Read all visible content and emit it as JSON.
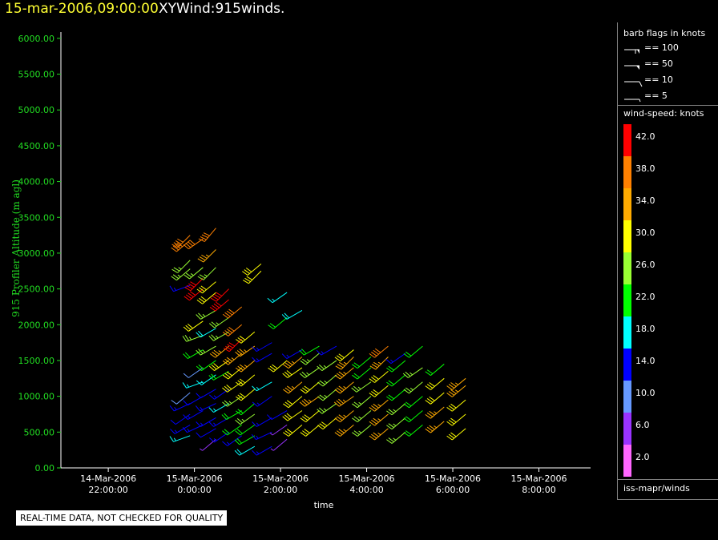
{
  "header": {
    "date_time": "15-mar-2006,09:00:00",
    "product": "XYWind:915winds."
  },
  "chart_data": {
    "type": "scatter",
    "marker": "wind-barb",
    "ylabel": "915 Profiler Altitude (m agl)",
    "xlabel": "time",
    "y_ticks": [
      "0.00",
      "500.00",
      "1000.00",
      "1500.00",
      "2000.00",
      "2500.00",
      "3000.00",
      "3500.00",
      "4000.00",
      "4500.00",
      "5000.00",
      "5500.00",
      "6000.00"
    ],
    "ylim": [
      0,
      6200
    ],
    "x_ticks": [
      {
        "hours": -2,
        "line1": "14-Mar-2006",
        "line2": "22:00:00"
      },
      {
        "hours": 0,
        "line1": "15-Mar-2006",
        "line2": "0:00:00"
      },
      {
        "hours": 2,
        "line1": "15-Mar-2006",
        "line2": "2:00:00"
      },
      {
        "hours": 4,
        "line1": "15-Mar-2006",
        "line2": "4:00:00"
      },
      {
        "hours": 6,
        "line1": "15-Mar-2006",
        "line2": "6:00:00"
      },
      {
        "hours": 8,
        "line1": "15-Mar-2006",
        "line2": "8:00:00"
      }
    ],
    "xlim_hours": [
      -3.1,
      9.2
    ],
    "colors": {
      "axis": "#22dd22",
      "tick_label": "#22dd22"
    },
    "profiles": [
      {
        "t": -0.1,
        "obs": [
          [
            450,
            16,
            250
          ],
          [
            600,
            14,
            240
          ],
          [
            750,
            12,
            235
          ],
          [
            900,
            14,
            245
          ],
          [
            1050,
            10,
            230
          ],
          [
            2550,
            14,
            250
          ],
          [
            2780,
            26,
            230
          ],
          [
            2900,
            26,
            225
          ],
          [
            3180,
            38,
            230
          ],
          [
            3250,
            38,
            225
          ]
        ]
      },
      {
        "t": 0.2,
        "obs": [
          [
            600,
            14,
            245
          ],
          [
            800,
            14,
            240
          ],
          [
            1000,
            12,
            240
          ],
          [
            1200,
            16,
            250
          ],
          [
            1400,
            10,
            235
          ],
          [
            1650,
            20,
            240
          ],
          [
            1850,
            26,
            250
          ],
          [
            2050,
            30,
            235
          ],
          [
            2500,
            42,
            230
          ],
          [
            2650,
            42,
            225
          ],
          [
            2800,
            26,
            230
          ],
          [
            3200,
            38,
            235
          ]
        ]
      },
      {
        "t": 0.5,
        "obs": [
          [
            400,
            6,
            230
          ],
          [
            550,
            12,
            240
          ],
          [
            700,
            14,
            240
          ],
          [
            900,
            14,
            245
          ],
          [
            1100,
            12,
            240
          ],
          [
            1300,
            16,
            235
          ],
          [
            1500,
            22,
            235
          ],
          [
            1700,
            26,
            240
          ],
          [
            1950,
            18,
            240
          ],
          [
            2200,
            26,
            240
          ],
          [
            2450,
            30,
            230
          ],
          [
            2600,
            30,
            230
          ],
          [
            2800,
            26,
            225
          ],
          [
            3050,
            34,
            225
          ],
          [
            3350,
            38,
            220
          ]
        ]
      },
      {
        "t": 0.8,
        "obs": [
          [
            500,
            14,
            235
          ],
          [
            700,
            14,
            240
          ],
          [
            900,
            16,
            240
          ],
          [
            1100,
            14,
            235
          ],
          [
            1350,
            22,
            240
          ],
          [
            1500,
            30,
            235
          ],
          [
            1700,
            34,
            230
          ],
          [
            1900,
            26,
            240
          ],
          [
            2100,
            26,
            235
          ],
          [
            2350,
            42,
            230
          ],
          [
            2500,
            42,
            225
          ]
        ]
      },
      {
        "t": 1.1,
        "obs": [
          [
            450,
            14,
            235
          ],
          [
            600,
            22,
            235
          ],
          [
            800,
            22,
            240
          ],
          [
            1000,
            26,
            235
          ],
          [
            1200,
            30,
            235
          ],
          [
            1400,
            30,
            230
          ],
          [
            1600,
            34,
            230
          ],
          [
            1800,
            42,
            225
          ],
          [
            2000,
            38,
            230
          ],
          [
            2250,
            38,
            230
          ]
        ]
      },
      {
        "t": 1.4,
        "obs": [
          [
            300,
            18,
            240
          ],
          [
            450,
            22,
            240
          ],
          [
            600,
            22,
            235
          ],
          [
            750,
            26,
            235
          ],
          [
            900,
            22,
            230
          ],
          [
            1100,
            30,
            230
          ],
          [
            1300,
            30,
            230
          ],
          [
            1500,
            34,
            230
          ],
          [
            1700,
            34,
            235
          ],
          [
            1900,
            30,
            230
          ]
        ]
      },
      {
        "t": 1.55,
        "obs": [
          [
            2750,
            30,
            225
          ],
          [
            2850,
            30,
            230
          ]
        ]
      },
      {
        "t": 1.8,
        "obs": [
          [
            300,
            14,
            240
          ],
          [
            500,
            14,
            245
          ],
          [
            700,
            14,
            240
          ],
          [
            1000,
            14,
            235
          ],
          [
            1200,
            16,
            240
          ],
          [
            1600,
            14,
            240
          ],
          [
            1750,
            14,
            240
          ]
        ]
      },
      {
        "t": 2.15,
        "obs": [
          [
            400,
            6,
            230
          ],
          [
            600,
            6,
            235
          ],
          [
            800,
            12,
            240
          ],
          [
            1500,
            30,
            230
          ],
          [
            2100,
            22,
            230
          ],
          [
            2450,
            16,
            235
          ]
        ]
      },
      {
        "t": 2.5,
        "obs": [
          [
            600,
            30,
            230
          ],
          [
            800,
            30,
            235
          ],
          [
            1000,
            30,
            230
          ],
          [
            1200,
            34,
            230
          ],
          [
            1400,
            30,
            235
          ],
          [
            1550,
            34,
            230
          ],
          [
            1650,
            14,
            240
          ],
          [
            2200,
            18,
            240
          ]
        ]
      },
      {
        "t": 2.9,
        "obs": [
          [
            600,
            30,
            230
          ],
          [
            800,
            30,
            230
          ],
          [
            1000,
            34,
            235
          ],
          [
            1200,
            30,
            230
          ],
          [
            1400,
            26,
            235
          ],
          [
            1600,
            26,
            230
          ],
          [
            1700,
            22,
            240
          ]
        ]
      },
      {
        "t": 3.3,
        "obs": [
          [
            700,
            30,
            230
          ],
          [
            900,
            26,
            235
          ],
          [
            1100,
            26,
            230
          ],
          [
            1300,
            26,
            230
          ],
          [
            1500,
            26,
            235
          ],
          [
            1700,
            14,
            240
          ]
        ]
      },
      {
        "t": 3.7,
        "obs": [
          [
            600,
            34,
            230
          ],
          [
            800,
            34,
            230
          ],
          [
            1000,
            34,
            235
          ],
          [
            1200,
            34,
            230
          ],
          [
            1400,
            34,
            230
          ],
          [
            1550,
            34,
            225
          ],
          [
            1650,
            30,
            230
          ]
        ]
      },
      {
        "t": 4.1,
        "obs": [
          [
            600,
            26,
            230
          ],
          [
            800,
            26,
            230
          ],
          [
            1000,
            26,
            230
          ],
          [
            1200,
            26,
            235
          ],
          [
            1400,
            22,
            230
          ],
          [
            1550,
            22,
            230
          ]
        ]
      },
      {
        "t": 4.5,
        "obs": [
          [
            550,
            34,
            230
          ],
          [
            750,
            34,
            230
          ],
          [
            950,
            34,
            230
          ],
          [
            1150,
            30,
            230
          ],
          [
            1350,
            30,
            230
          ],
          [
            1550,
            34,
            225
          ],
          [
            1700,
            38,
            230
          ]
        ]
      },
      {
        "t": 4.9,
        "obs": [
          [
            500,
            26,
            230
          ],
          [
            700,
            26,
            230
          ],
          [
            900,
            26,
            230
          ],
          [
            1100,
            22,
            230
          ],
          [
            1300,
            22,
            230
          ],
          [
            1500,
            22,
            230
          ],
          [
            1600,
            14,
            235
          ]
        ]
      },
      {
        "t": 5.3,
        "obs": [
          [
            600,
            22,
            230
          ],
          [
            800,
            22,
            230
          ],
          [
            1000,
            22,
            230
          ],
          [
            1200,
            26,
            230
          ],
          [
            1400,
            26,
            235
          ],
          [
            1700,
            22,
            230
          ]
        ]
      },
      {
        "t": 5.8,
        "obs": [
          [
            650,
            34,
            230
          ],
          [
            850,
            34,
            230
          ],
          [
            1050,
            30,
            230
          ],
          [
            1250,
            30,
            230
          ],
          [
            1450,
            22,
            230
          ]
        ]
      },
      {
        "t": 6.3,
        "obs": [
          [
            550,
            30,
            230
          ],
          [
            750,
            30,
            230
          ],
          [
            950,
            30,
            230
          ],
          [
            1150,
            34,
            230
          ],
          [
            1250,
            34,
            230
          ]
        ]
      }
    ]
  },
  "legend": {
    "flags_title": "barb flags in knots",
    "flags": [
      "== 100",
      "== 50",
      "== 10",
      "== 5"
    ],
    "speed_title": "wind-speed: knots",
    "color_scale": [
      {
        "label": "42.0",
        "color": "#ff0000"
      },
      {
        "label": "38.0",
        "color": "#ff8000"
      },
      {
        "label": "34.0",
        "color": "#ffaa00"
      },
      {
        "label": "30.0",
        "color": "#ffff00"
      },
      {
        "label": "26.0",
        "color": "#99ff33"
      },
      {
        "label": "22.0",
        "color": "#00ff00"
      },
      {
        "label": "18.0",
        "color": "#00ffff"
      },
      {
        "label": "14.0",
        "color": "#0000ff"
      },
      {
        "label": "10.0",
        "color": "#6699ff"
      },
      {
        "label": "6.0",
        "color": "#9933ff"
      },
      {
        "label": "2.0",
        "color": "#ff66ff"
      }
    ],
    "source": "iss-mapr/winds"
  },
  "notice": "REAL-TIME DATA, NOT CHECKED FOR QUALITY"
}
